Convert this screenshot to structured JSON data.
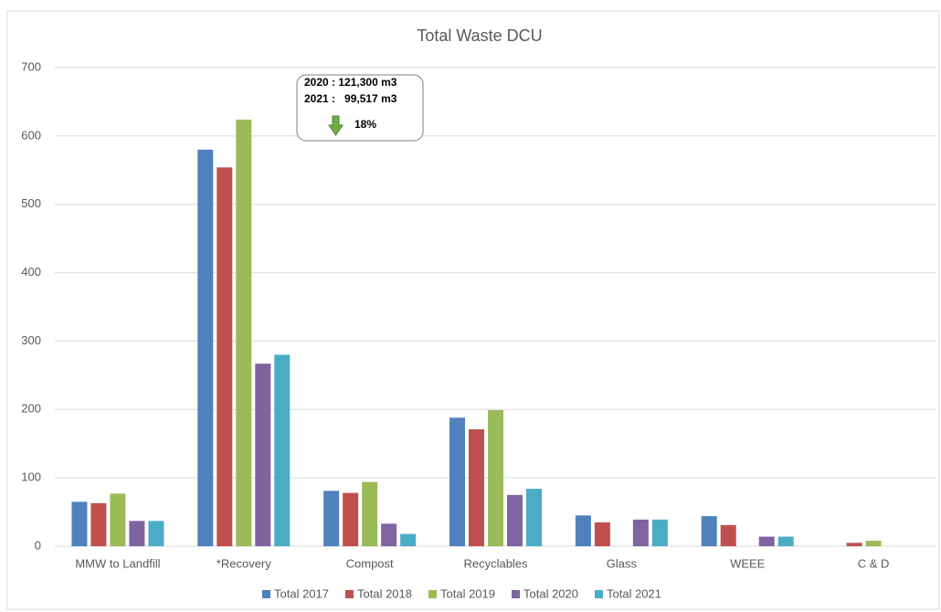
{
  "chart_data": {
    "type": "bar",
    "title": "Total Waste DCU",
    "categories": [
      "MMW to Landfill",
      "*Recovery",
      "Compost",
      "Recyclables",
      "Glass",
      "WEEE",
      "C & D"
    ],
    "series": [
      {
        "name": "Total 2017",
        "color": "#4f81bd",
        "values": [
          65,
          580,
          81,
          188,
          45,
          44,
          0
        ]
      },
      {
        "name": "Total 2018",
        "color": "#c0504d",
        "values": [
          63,
          554,
          78,
          171,
          35,
          31,
          5
        ]
      },
      {
        "name": "Total 2019",
        "color": "#9bbb59",
        "values": [
          77,
          624,
          94,
          199,
          0,
          0,
          8
        ]
      },
      {
        "name": "Total 2020",
        "color": "#8064a2",
        "values": [
          37,
          267,
          33,
          75,
          39,
          14,
          0
        ]
      },
      {
        "name": "Total 2021",
        "color": "#4bacc6",
        "values": [
          37,
          280,
          18,
          84,
          39,
          14,
          0
        ]
      }
    ],
    "ylim": [
      0,
      700
    ],
    "yticks": [
      0,
      100,
      200,
      300,
      400,
      500,
      600,
      700
    ],
    "grid": true,
    "legend": "bottom",
    "annotations": [
      "2020 : 121,300 m3",
      "2021 :   99,517 m3",
      "18%"
    ]
  }
}
